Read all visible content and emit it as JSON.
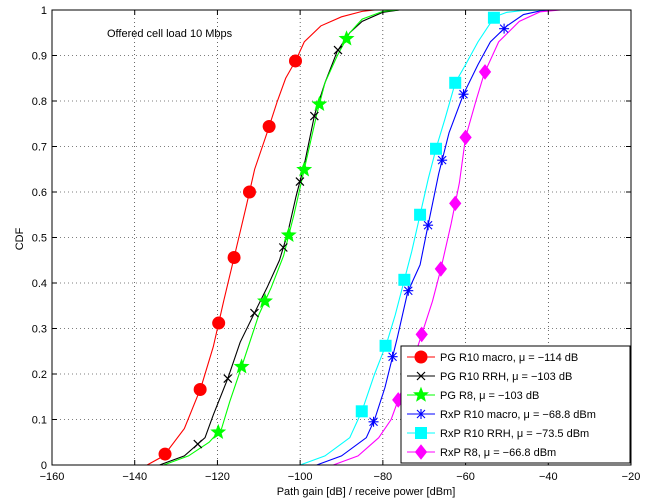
{
  "chart_data": {
    "type": "line",
    "title": "",
    "annotation": "Offered cell load 10 Mbps",
    "xlabel": "Path gain [dB] / receive power [dBm]",
    "ylabel": "CDF",
    "xlim": [
      -160,
      -20
    ],
    "ylim": [
      0,
      1
    ],
    "xticks": [
      "−160",
      "−140",
      "−120",
      "−100",
      "−80",
      "−60",
      "−40",
      "−20"
    ],
    "yticks": [
      "0",
      "0.1",
      "0.2",
      "0.3",
      "0.4",
      "0.5",
      "0.6",
      "0.7",
      "0.8",
      "0.9",
      "1"
    ],
    "grid": true,
    "legend_position": "bottom-right",
    "series": [
      {
        "name": "PG R10 macro, μ = −114 dB",
        "color": "#ff0000",
        "marker": "circle",
        "x": [
          -137,
          -133,
          -128,
          -124,
          -121,
          -118.5,
          -116,
          -113,
          -111,
          -108,
          -105.5,
          -103.5,
          -101,
          -99,
          -95,
          -90,
          -85,
          -82
        ],
        "y": [
          0,
          0.02,
          0.08,
          0.17,
          0.26,
          0.36,
          0.455,
          0.57,
          0.65,
          0.73,
          0.8,
          0.85,
          0.89,
          0.93,
          0.965,
          0.985,
          0.997,
          1
        ]
      },
      {
        "name": "PG R10 RRH, μ = −103 dB",
        "color": "#000000",
        "marker": "x",
        "x": [
          -134,
          -128,
          -123,
          -121,
          -117.5,
          -114.5,
          -111,
          -108,
          -105,
          -103,
          -101,
          -99,
          -96.5,
          -94,
          -91,
          -88,
          -85,
          -80,
          -76
        ],
        "y": [
          0,
          0.02,
          0.06,
          0.11,
          0.19,
          0.27,
          0.335,
          0.39,
          0.45,
          0.51,
          0.59,
          0.66,
          0.77,
          0.84,
          0.91,
          0.95,
          0.975,
          0.995,
          1
        ]
      },
      {
        "name": "PG R8, μ = −103 dB",
        "color": "#00ff00",
        "marker": "star",
        "x": [
          -133,
          -127,
          -122,
          -119,
          -117,
          -114,
          -110,
          -107,
          -104,
          -101.5,
          -99,
          -96,
          -94,
          -91,
          -88,
          -85,
          -80,
          -76
        ],
        "y": [
          0,
          0.02,
          0.05,
          0.08,
          0.14,
          0.22,
          0.33,
          0.39,
          0.46,
          0.55,
          0.65,
          0.77,
          0.84,
          0.9,
          0.95,
          0.98,
          0.997,
          1
        ]
      },
      {
        "name": "RxP R10 macro, μ = −68.8 dBm",
        "color": "#0000ff",
        "marker": "asterisk",
        "x": [
          -96,
          -90,
          -84,
          -82,
          -79.5,
          -76.5,
          -74,
          -71,
          -69,
          -66.5,
          -64,
          -60.5,
          -57,
          -54,
          -50,
          -46,
          -42,
          -38
        ],
        "y": [
          0,
          0.02,
          0.06,
          0.1,
          0.17,
          0.28,
          0.38,
          0.44,
          0.53,
          0.64,
          0.73,
          0.815,
          0.88,
          0.93,
          0.965,
          0.99,
          0.998,
          1
        ]
      },
      {
        "name": "RxP R10 RRH, μ = −73.5 dBm",
        "color": "#00ffff",
        "marker": "square",
        "x": [
          -100,
          -94,
          -88,
          -85,
          -82,
          -79,
          -77,
          -75,
          -73,
          -71,
          -69,
          -67,
          -65,
          -62.5,
          -60,
          -57,
          -53,
          -50,
          -46,
          -40
        ],
        "y": [
          0,
          0.02,
          0.06,
          0.12,
          0.2,
          0.27,
          0.33,
          0.4,
          0.47,
          0.55,
          0.63,
          0.7,
          0.76,
          0.84,
          0.88,
          0.93,
          0.985,
          0.995,
          0.999,
          1
        ]
      },
      {
        "name": "RxP R8, μ = −66.8 dBm",
        "color": "#ff00ff",
        "marker": "diamond",
        "x": [
          -92,
          -86,
          -81,
          -78,
          -76,
          -73,
          -70.5,
          -68,
          -66,
          -63.5,
          -61.5,
          -60,
          -57.5,
          -55.5,
          -52,
          -47,
          -42,
          -37
        ],
        "y": [
          0,
          0.02,
          0.06,
          0.1,
          0.15,
          0.22,
          0.29,
          0.36,
          0.43,
          0.53,
          0.62,
          0.72,
          0.8,
          0.86,
          0.93,
          0.975,
          0.996,
          1
        ]
      }
    ]
  }
}
